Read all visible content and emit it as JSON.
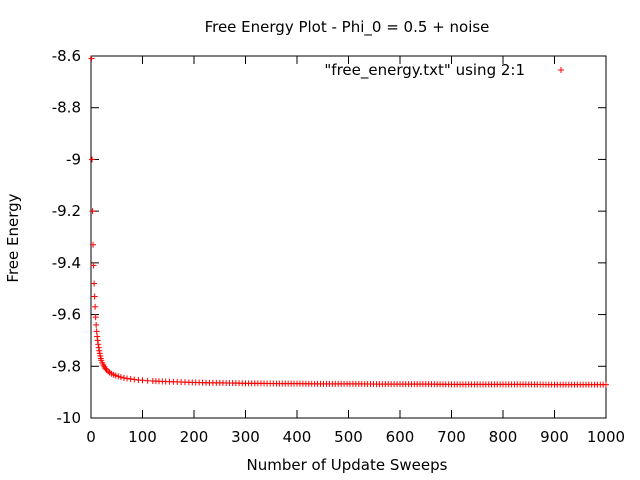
{
  "chart_data": {
    "type": "scatter",
    "title": "Free Energy Plot - Phi_0 = 0.5 + noise",
    "xlabel": "Number of Update Sweeps",
    "ylabel": "Free Energy",
    "xlim": [
      0,
      1000
    ],
    "ylim": [
      -10,
      -8.6
    ],
    "xticks": [
      "0",
      "100",
      "200",
      "300",
      "400",
      "500",
      "600",
      "700",
      "800",
      "900",
      "1000"
    ],
    "yticks": [
      "-8.6",
      "-8.8",
      "-9",
      "-9.2",
      "-9.4",
      "-9.6",
      "-9.8",
      "-10"
    ],
    "grid": false,
    "legend_position": "top-right",
    "series": [
      {
        "name": "\"free_energy.txt\" using 2:1",
        "color": "#ff0000",
        "marker": "plus",
        "x": [
          1,
          2,
          3,
          4,
          5,
          6,
          7,
          8,
          9,
          10,
          11,
          12,
          13,
          14,
          15,
          16,
          17,
          18,
          19,
          20,
          22,
          24,
          26,
          28,
          30,
          33,
          36,
          40,
          44,
          48,
          53,
          58,
          64,
          70,
          77,
          84,
          92,
          100,
          110,
          120,
          132,
          145,
          160,
          175,
          190,
          210,
          230,
          250,
          275,
          300,
          330,
          360,
          400,
          440,
          480,
          520,
          560,
          600,
          650,
          700,
          750,
          800,
          850,
          900,
          950,
          1000
        ],
        "y": [
          -8.61,
          -9.0,
          -9.2,
          -9.33,
          -9.41,
          -9.48,
          -9.53,
          -9.57,
          -9.61,
          -9.64,
          -9.665,
          -9.685,
          -9.7,
          -9.715,
          -9.728,
          -9.74,
          -9.75,
          -9.76,
          -9.77,
          -9.777,
          -9.787,
          -9.795,
          -9.802,
          -9.808,
          -9.813,
          -9.819,
          -9.824,
          -9.829,
          -9.833,
          -9.836,
          -9.839,
          -9.842,
          -9.845,
          -9.847,
          -9.849,
          -9.851,
          -9.853,
          -9.854,
          -9.856,
          -9.857,
          -9.858,
          -9.859,
          -9.86,
          -9.861,
          -9.862,
          -9.863,
          -9.864,
          -9.864,
          -9.865,
          -9.866,
          -9.866,
          -9.867,
          -9.867,
          -9.868,
          -9.868,
          -9.868,
          -9.869,
          -9.869,
          -9.869,
          -9.87,
          -9.87,
          -9.87,
          -9.87,
          -9.871,
          -9.871,
          -9.871
        ]
      }
    ]
  }
}
